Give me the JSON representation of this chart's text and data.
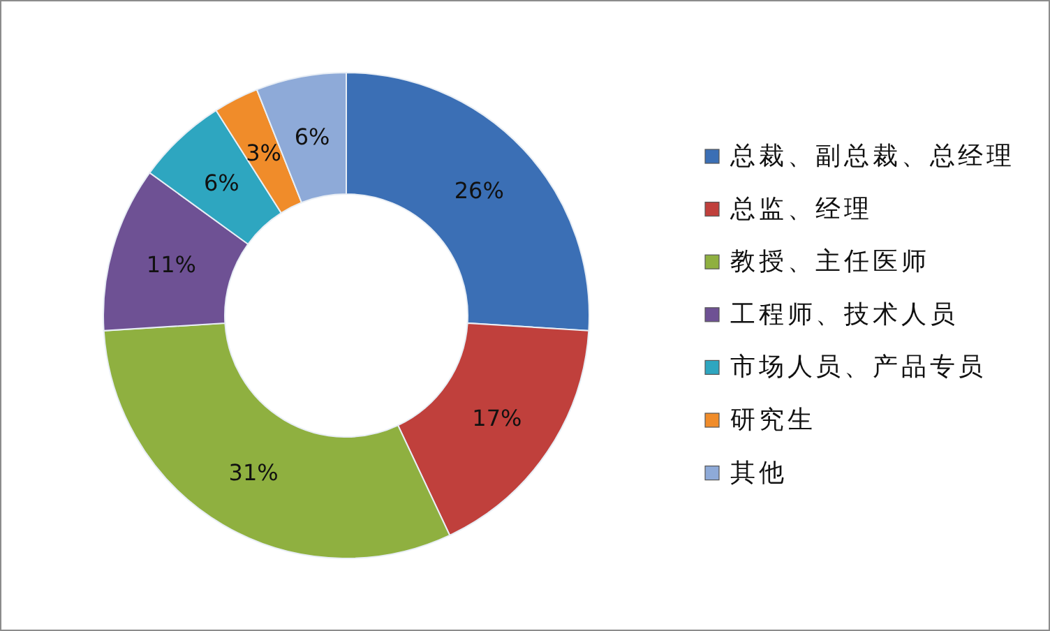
{
  "chart_data": {
    "type": "donut",
    "categories": [
      "总裁、副总裁、总经理",
      "总监、经理",
      "教授、主任医师",
      "工程师、技术人员",
      "市场人员、产品专员",
      "研究生",
      "其他"
    ],
    "values": [
      26,
      17,
      31,
      11,
      6,
      3,
      6
    ],
    "colors": [
      "#3b6fb5",
      "#c0403c",
      "#8fb040",
      "#6e5194",
      "#2ea6c0",
      "#f08c2a",
      "#8eaad8"
    ],
    "value_labels": [
      "26%",
      "17%",
      "31%",
      "11%",
      "6%",
      "3%",
      "6%"
    ],
    "legend": "right"
  }
}
